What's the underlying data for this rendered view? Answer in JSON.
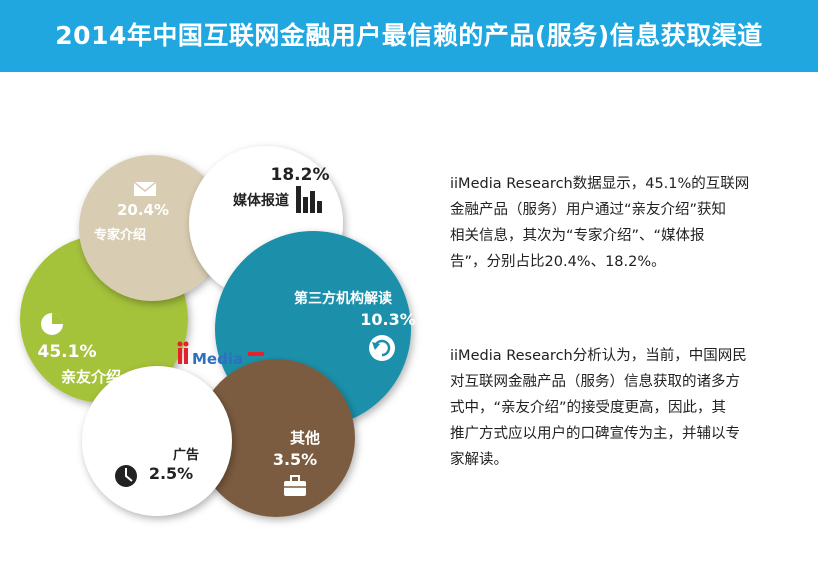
{
  "header": {
    "title": "2014年中国互联网金融用户最信赖的产品(服务)信息获取渠道"
  },
  "colors": {
    "banner": "#20a7e0",
    "friends": "#a5c23b",
    "experts": "#d8cdb2",
    "media": "#ffffff",
    "third_party": "#1a90aa",
    "other": "#7b5c3f",
    "ads": "#ffffff"
  },
  "chart_data": {
    "type": "pie",
    "title": "2014年中国互联网金融用户最信赖的产品(服务)信息获取渠道",
    "unit": "%",
    "series": [
      {
        "name": "亲友介绍",
        "value": 45.1,
        "label": "45.1%",
        "icon": "pie-chart-icon"
      },
      {
        "name": "专家介绍",
        "value": 20.4,
        "label": "20.4%",
        "icon": "envelope-icon"
      },
      {
        "name": "媒体报道",
        "value": 18.2,
        "label": "18.2%",
        "icon": "bar-chart-icon"
      },
      {
        "name": "第三方机构解读",
        "value": 10.3,
        "label": "10.3%",
        "icon": "refresh-cycle-icon"
      },
      {
        "name": "其他",
        "value": 3.5,
        "label": "3.5%",
        "icon": "briefcase-icon"
      },
      {
        "name": "广告",
        "value": 2.5,
        "label": "2.5%",
        "icon": "clock-icon"
      }
    ]
  },
  "logo": {
    "text": "iiMedia"
  },
  "text": {
    "paragraph1_lines": [
      "iiMedia Research数据显示，45.1%的互联网",
      "金融产品（服务）用户通过“亲友介绍”获知",
      "相关信息，其次为“专家介绍”、“媒体报",
      "告”，分别占比20.4%、18.2%。"
    ],
    "paragraph2_lines": [
      "iiMedia  Research分析认为，当前，中国网民",
      "对互联网金融产品（服务）信息获取的诸多方",
      "式中，“亲友介绍”的接受度更高，因此，其",
      "推广方式应以用户的口碑宣传为主，并辅以专",
      "家解读。"
    ]
  }
}
